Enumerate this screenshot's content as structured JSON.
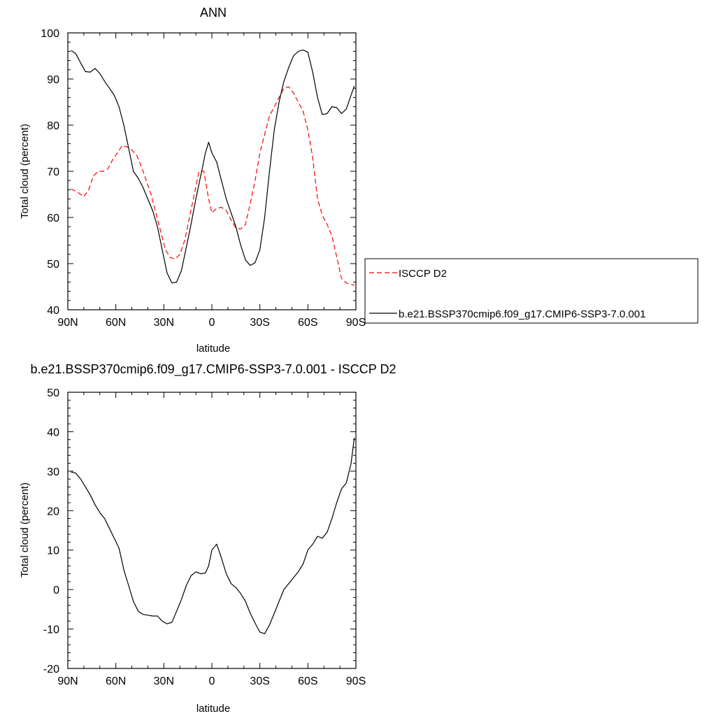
{
  "chart_data": [
    {
      "type": "line",
      "title": "ANN",
      "xlabel": "latitude",
      "ylabel": "Total cloud (percent)",
      "xlim": [
        90,
        -90
      ],
      "ylim": [
        40,
        100
      ],
      "x_tick_values": [
        90,
        60,
        30,
        0,
        -30,
        -60,
        -90
      ],
      "x_tick_labels": [
        "90N",
        "60N",
        "30N",
        "0",
        "30S",
        "60S",
        "90S"
      ],
      "y_tick_values": [
        40,
        50,
        60,
        70,
        80,
        90,
        100
      ],
      "y_tick_labels": [
        "40",
        "50",
        "60",
        "70",
        "80",
        "90",
        "100"
      ],
      "legend_position": "right",
      "series": [
        {
          "name": "ISCCP D2",
          "color": "#ff0000",
          "dash": "dashed",
          "x": [
            88,
            84,
            80,
            77,
            74,
            71,
            68,
            65,
            62,
            59,
            56,
            53,
            50,
            47,
            44,
            41,
            38,
            35,
            32,
            29,
            26,
            23,
            20,
            17,
            14,
            11,
            8,
            5,
            2,
            0,
            -3,
            -6,
            -9,
            -12,
            -15,
            -18,
            -21,
            -24,
            -27,
            -30,
            -33,
            -36,
            -39,
            -42,
            -45,
            -48,
            -51,
            -54,
            -57,
            -60,
            -63,
            -66,
            -69,
            -72,
            -75,
            -78,
            -81,
            -84,
            -87,
            -89
          ],
          "y": [
            66.2,
            65.5,
            64.5,
            66,
            69,
            70,
            70,
            70.5,
            72.5,
            74,
            75.6,
            75.3,
            74.6,
            73.5,
            71,
            68,
            65,
            61,
            57,
            53,
            51.3,
            51,
            52,
            55,
            60,
            65,
            70,
            70,
            64,
            61,
            62,
            62.2,
            61.5,
            59.5,
            57.7,
            57.5,
            58.5,
            63,
            68,
            74,
            78,
            82,
            84,
            86,
            88,
            88.3,
            87,
            85,
            83,
            79,
            73,
            64,
            60.5,
            58.5,
            56,
            51.5,
            46.8,
            45.8,
            45.5,
            45.3
          ]
        },
        {
          "name": "b.e21.BSSP370cmip6.f09_g17.CMIP6-SSP3-7.0.001",
          "color": "#000000",
          "dash": "solid",
          "x": [
            88,
            85,
            82,
            79,
            76,
            73,
            70,
            67,
            64,
            61,
            58,
            55,
            52,
            49,
            46,
            43,
            40,
            37,
            34,
            31,
            28,
            25,
            22,
            19,
            16,
            13,
            10,
            7,
            4,
            2,
            0,
            -3,
            -6,
            -9,
            -12,
            -15,
            -18,
            -21,
            -24,
            -27,
            -30,
            -33,
            -36,
            -39,
            -42,
            -45,
            -48,
            -51,
            -54,
            -57,
            -60,
            -63,
            -66,
            -69,
            -72,
            -75,
            -78,
            -81,
            -84,
            -87,
            -89
          ],
          "y": [
            96.2,
            95.5,
            93.5,
            91.6,
            91.5,
            92.3,
            91.2,
            89.5,
            88,
            86.5,
            84,
            80,
            75,
            70,
            68.5,
            66.5,
            64,
            61.5,
            58,
            53,
            48,
            45.8,
            46,
            48.5,
            53.5,
            58.5,
            64,
            69,
            74,
            76.3,
            74,
            72,
            68,
            64,
            61,
            58,
            54,
            50.8,
            49.6,
            50.2,
            53,
            60,
            70,
            79,
            85,
            89.5,
            92.5,
            95,
            96,
            96.3,
            95.8,
            91.5,
            86,
            82.3,
            82.5,
            84,
            83.8,
            82.5,
            83.5,
            86.5,
            88.5
          ]
        }
      ]
    },
    {
      "type": "line",
      "title": "b.e21.BSSP370cmip6.f09_g17.CMIP6-SSP3-7.0.001 - ISCCP D2",
      "xlabel": "latitude",
      "ylabel": "Total cloud (percent)",
      "xlim": [
        90,
        -90
      ],
      "ylim": [
        -20,
        50
      ],
      "x_tick_values": [
        90,
        60,
        30,
        0,
        -30,
        -60,
        -90
      ],
      "x_tick_labels": [
        "90N",
        "60N",
        "30N",
        "0",
        "30S",
        "60S",
        "90S"
      ],
      "y_tick_values": [
        -20,
        -10,
        0,
        10,
        20,
        30,
        40,
        50
      ],
      "y_tick_labels": [
        "-20",
        "-10",
        "0",
        "10",
        "20",
        "30",
        "40",
        "50"
      ],
      "series": [
        {
          "name": "",
          "color": "#000000",
          "dash": "solid",
          "x": [
            88,
            85,
            82,
            79,
            76,
            73,
            70,
            67,
            64,
            61,
            58,
            55,
            52,
            49,
            46,
            43,
            40,
            37,
            34,
            31,
            28,
            25,
            22,
            19,
            16,
            13,
            10,
            7,
            4,
            2,
            0,
            -3,
            -6,
            -9,
            -12,
            -15,
            -18,
            -21,
            -24,
            -27,
            -30,
            -33,
            -36,
            -39,
            -42,
            -45,
            -48,
            -51,
            -54,
            -57,
            -60,
            -63,
            -66,
            -69,
            -72,
            -75,
            -78,
            -81,
            -84,
            -87,
            -89
          ],
          "y": [
            29.8,
            29.5,
            28,
            26,
            24,
            21.5,
            19.5,
            18,
            15.5,
            13,
            10.5,
            5,
            1,
            -3,
            -5.5,
            -6.3,
            -6.5,
            -6.7,
            -6.7,
            -8,
            -8.7,
            -8.3,
            -5.5,
            -2.5,
            1,
            3.5,
            4.5,
            4,
            4.2,
            6,
            10,
            11.5,
            8,
            4,
            1.5,
            0.5,
            -1,
            -3,
            -6,
            -8.5,
            -10.8,
            -11.2,
            -9,
            -6,
            -3,
            0,
            1.5,
            3,
            4.5,
            6.5,
            10,
            11.5,
            13.5,
            13,
            14.5,
            18,
            22,
            25.5,
            27,
            32,
            38.5
          ]
        }
      ]
    }
  ]
}
